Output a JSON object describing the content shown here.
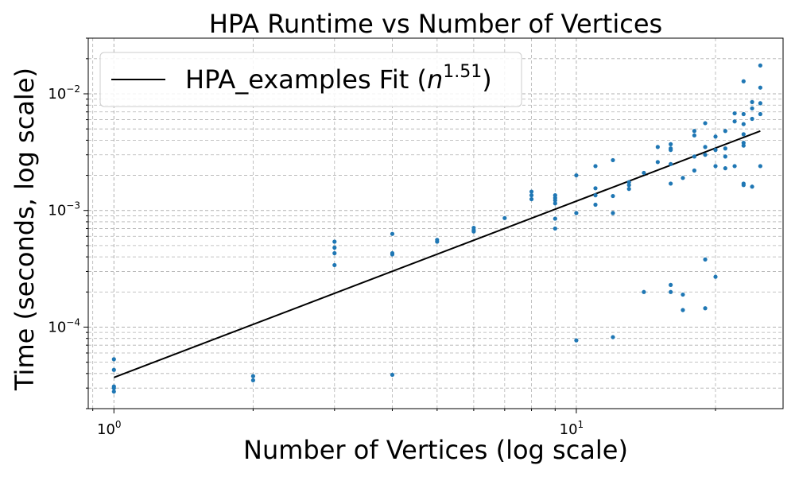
{
  "chart_data": {
    "type": "scatter",
    "title": "HPA Runtime vs Number of Vertices",
    "xlabel": "Number of Vertices (log scale)",
    "ylabel": "Time (seconds, log scale)",
    "xscale": "log",
    "yscale": "log",
    "xlim": [
      0.88,
      28
    ],
    "ylim": [
      2e-05,
      0.03
    ],
    "grid": true,
    "legend_position": "top-left",
    "x_ticks": [
      {
        "base": "10",
        "exp": "0",
        "value": 1
      },
      {
        "base": "10",
        "exp": "1",
        "value": 10
      }
    ],
    "y_ticks": [
      {
        "base": "10",
        "exp": "−4",
        "value": 0.0001
      },
      {
        "base": "10",
        "exp": "−3",
        "value": 0.001
      },
      {
        "base": "10",
        "exp": "−2",
        "value": 0.01
      }
    ],
    "colors": {
      "points": "#1f77b4",
      "fit": "#000000",
      "grid": "#b0b0b0"
    },
    "legend": {
      "prefix": "HPA_examples Fit (",
      "var": "n",
      "exp": "1.51",
      "suffix": ")"
    },
    "fit": {
      "x": [
        1,
        25
      ],
      "y": [
        3.7e-05,
        0.0048
      ],
      "exponent": 1.51
    },
    "points": [
      [
        1,
        5.3e-05
      ],
      [
        1,
        4.3e-05
      ],
      [
        1,
        3e-05
      ],
      [
        1,
        2.8e-05
      ],
      [
        1,
        3.1e-05
      ],
      [
        2,
        3.8e-05
      ],
      [
        2,
        3.5e-05
      ],
      [
        3,
        0.00054
      ],
      [
        3,
        0.00048
      ],
      [
        3,
        0.00043
      ],
      [
        3,
        0.00034
      ],
      [
        4,
        0.00063
      ],
      [
        4,
        0.00043
      ],
      [
        4,
        0.00042
      ],
      [
        4,
        3.9e-05
      ],
      [
        5,
        0.00056
      ],
      [
        5,
        0.00054
      ],
      [
        6,
        0.00071
      ],
      [
        6,
        0.00068
      ],
      [
        6,
        0.00066
      ],
      [
        7,
        0.00086
      ],
      [
        8,
        0.00145
      ],
      [
        8,
        0.00135
      ],
      [
        8,
        0.00125
      ],
      [
        9,
        0.00135
      ],
      [
        9,
        0.00128
      ],
      [
        9,
        0.00122
      ],
      [
        9,
        0.00115
      ],
      [
        9,
        0.00085
      ],
      [
        9,
        0.0007
      ],
      [
        10,
        0.002
      ],
      [
        10,
        0.00095
      ],
      [
        10,
        7.7e-05
      ],
      [
        11,
        0.0024
      ],
      [
        11,
        0.00155
      ],
      [
        11,
        0.00135
      ],
      [
        11,
        0.00112
      ],
      [
        12,
        0.0027
      ],
      [
        12,
        0.00133
      ],
      [
        12,
        0.00095
      ],
      [
        12,
        8.2e-05
      ],
      [
        13,
        0.00175
      ],
      [
        13,
        0.00165
      ],
      [
        13,
        0.00153
      ],
      [
        14,
        0.0021
      ],
      [
        14,
        0.0002
      ],
      [
        15,
        0.0035
      ],
      [
        15,
        0.0026
      ],
      [
        16,
        0.0037
      ],
      [
        16,
        0.0034
      ],
      [
        16,
        0.0033
      ],
      [
        16,
        0.0025
      ],
      [
        16,
        0.0017
      ],
      [
        16,
        0.00023
      ],
      [
        16,
        0.0002
      ],
      [
        17,
        0.0019
      ],
      [
        17,
        0.00019
      ],
      [
        17,
        0.00014
      ],
      [
        18,
        0.0048
      ],
      [
        18,
        0.0044
      ],
      [
        18,
        0.0029
      ],
      [
        18,
        0.0022
      ],
      [
        19,
        0.0056
      ],
      [
        19,
        0.0035
      ],
      [
        19,
        0.003
      ],
      [
        19,
        0.00038
      ],
      [
        19,
        0.000145
      ],
      [
        20,
        0.0043
      ],
      [
        20,
        0.0033
      ],
      [
        20,
        0.0024
      ],
      [
        20,
        0.00027
      ],
      [
        21,
        0.0048
      ],
      [
        21,
        0.0034
      ],
      [
        21,
        0.0029
      ],
      [
        21,
        0.0023
      ],
      [
        22,
        0.0068
      ],
      [
        22,
        0.0058
      ],
      [
        22,
        0.0024
      ],
      [
        23,
        0.0128
      ],
      [
        23,
        0.0067
      ],
      [
        23,
        0.0055
      ],
      [
        23,
        0.0045
      ],
      [
        23,
        0.0038
      ],
      [
        23,
        0.0036
      ],
      [
        23,
        0.0017
      ],
      [
        23,
        0.00165
      ],
      [
        24,
        0.0085
      ],
      [
        24,
        0.0075
      ],
      [
        24,
        0.0061
      ],
      [
        24,
        0.0016
      ],
      [
        25,
        0.0175
      ],
      [
        25,
        0.0113
      ],
      [
        25,
        0.0083
      ],
      [
        25,
        0.0067
      ],
      [
        25,
        0.0024
      ]
    ]
  }
}
